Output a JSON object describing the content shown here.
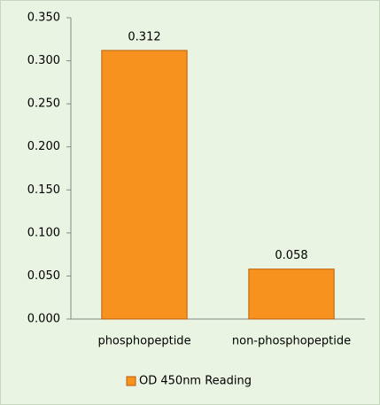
{
  "chart_data": {
    "type": "bar",
    "categories": [
      "phosphopeptide",
      "non-phosphopeptide"
    ],
    "series": [
      {
        "name": "OD 450nm Reading",
        "color": "#f7921e",
        "values": [
          0.312,
          0.058
        ]
      }
    ],
    "ylim": [
      0,
      0.35
    ],
    "yticks": [
      {
        "value": 0,
        "label": "0.000"
      },
      {
        "value": 0.05,
        "label": "0.050"
      },
      {
        "value": 0.1,
        "label": "0.100"
      },
      {
        "value": 0.15,
        "label": "0.150"
      },
      {
        "value": 0.2,
        "label": "0.200"
      },
      {
        "value": 0.25,
        "label": "0.250"
      },
      {
        "value": 0.3,
        "label": "0.300"
      },
      {
        "value": 0.35,
        "label": "0.350"
      }
    ],
    "grid": false,
    "legend": "bottom"
  }
}
